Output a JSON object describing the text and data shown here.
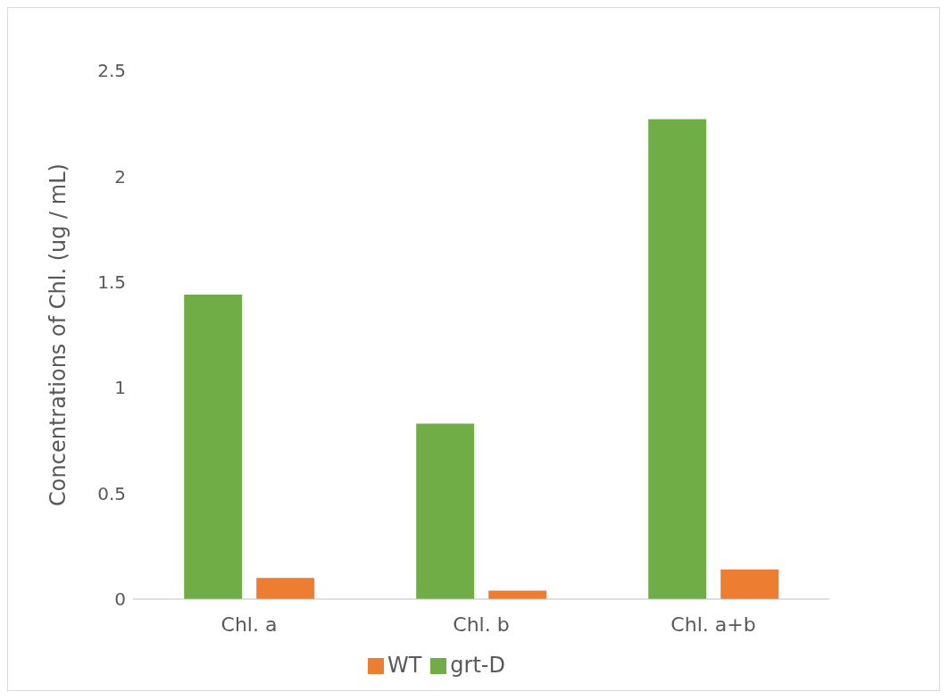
{
  "chart_data": {
    "type": "bar",
    "ylabel": "Concentrations of Chl. (ug / mL)",
    "categories": [
      "Chl. a",
      "Chl. b",
      "Chl. a+b"
    ],
    "series": [
      {
        "name": "grt-D",
        "color": "#70ad47",
        "values": [
          1.44,
          0.83,
          2.27
        ]
      },
      {
        "name": "WT",
        "color": "#ed7d31",
        "values": [
          0.1,
          0.04,
          0.14
        ]
      }
    ],
    "ylim": [
      0,
      2.5
    ],
    "yticks": [
      0,
      0.5,
      1,
      1.5,
      2,
      2.5
    ],
    "grid": false,
    "legend": "bottom"
  }
}
